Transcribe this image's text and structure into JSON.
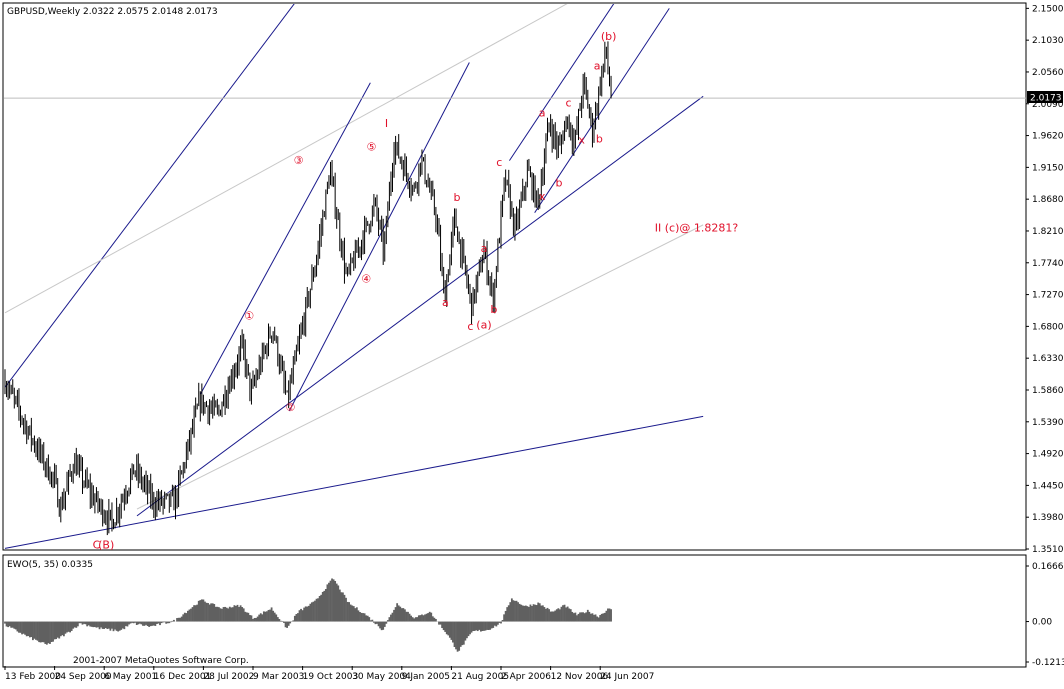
{
  "header": {
    "title": "GBPUSD,Weekly  2.0322 2.0575 2.0148 2.0173"
  },
  "indicator": {
    "title": "EWO(5, 35) 0.0335",
    "ticks": [
      "0.1666",
      "0.00",
      "-0.1213"
    ]
  },
  "copyright": "2001-2007 MetaQuotes Software Corp.",
  "current_price": "2.0173",
  "colors": {
    "background": "#ffffff",
    "bars": "#000000",
    "channels": "#1a1a8c",
    "thin_lines": "#c8c8c8",
    "labels": "#e0102a",
    "price_box": "#000000",
    "histogram": "#606060"
  },
  "chart_data": [
    {
      "type": "bar",
      "subtype": "ohlc",
      "title": "GBPUSD,Weekly  2.0322 2.0575 2.0148 2.0173",
      "last_bar": {
        "open": 2.0322,
        "high": 2.0575,
        "low": 2.0148,
        "close": 2.0173
      },
      "ylim": [
        1.351,
        2.152
      ],
      "y_ticks": [
        "2.1500",
        "2.1030",
        "2.0560",
        "2.0090",
        "1.9620",
        "1.9150",
        "1.8680",
        "1.8210",
        "1.7740",
        "1.7270",
        "1.6800",
        "1.6330",
        "1.5860",
        "1.5390",
        "1.4920",
        "1.4450",
        "1.3980",
        "1.3510"
      ],
      "x_ticks": [
        "13 Feb 2000",
        "24 Sep 2000",
        "6 May 2001",
        "16 Dec 2001",
        "28 Jul 2002",
        "9 Mar 2003",
        "19 Oct 2003",
        "30 May 2004",
        "9 Jan 2005",
        "21 Aug 2005",
        "2 Apr 2006",
        "12 Nov 2006",
        "24 Jun 2007"
      ],
      "price_path": [
        {
          "date": "2000-02-13",
          "price": 1.6
        },
        {
          "date": "2000-05-20",
          "price": 1.53
        },
        {
          "date": "2000-09-24",
          "price": 1.45
        },
        {
          "date": "2000-10-20",
          "price": 1.41
        },
        {
          "date": "2000-12-20",
          "price": 1.48
        },
        {
          "date": "2001-03-10",
          "price": 1.43
        },
        {
          "date": "2001-06-10",
          "price": 1.39
        },
        {
          "date": "2001-09-20",
          "price": 1.47
        },
        {
          "date": "2001-12-16",
          "price": 1.42
        },
        {
          "date": "2002-03-20",
          "price": 1.42
        },
        {
          "date": "2002-07-10",
          "price": 1.57
        },
        {
          "date": "2002-10-01",
          "price": 1.55
        },
        {
          "date": "2003-01-20",
          "price": 1.65
        },
        {
          "date": "2003-02-28",
          "price": 1.58
        },
        {
          "date": "2003-06-05",
          "price": 1.68
        },
        {
          "date": "2003-08-10",
          "price": 1.57
        },
        {
          "date": "2003-12-20",
          "price": 1.78
        },
        {
          "date": "2004-02-20",
          "price": 1.91
        },
        {
          "date": "2004-05-05",
          "price": 1.75
        },
        {
          "date": "2004-09-10",
          "price": 1.86
        },
        {
          "date": "2004-10-20",
          "price": 1.79
        },
        {
          "date": "2004-12-05",
          "price": 1.95
        },
        {
          "date": "2005-03-05",
          "price": 1.88
        },
        {
          "date": "2005-04-05",
          "price": 1.93
        },
        {
          "date": "2005-06-15",
          "price": 1.84
        },
        {
          "date": "2005-07-20",
          "price": 1.72
        },
        {
          "date": "2005-09-05",
          "price": 1.84
        },
        {
          "date": "2005-11-20",
          "price": 1.71
        },
        {
          "date": "2006-01-15",
          "price": 1.79
        },
        {
          "date": "2006-02-25",
          "price": 1.72
        },
        {
          "date": "2006-04-20",
          "price": 1.9
        },
        {
          "date": "2006-06-05",
          "price": 1.82
        },
        {
          "date": "2006-08-01",
          "price": 1.91
        },
        {
          "date": "2006-09-15",
          "price": 1.86
        },
        {
          "date": "2006-11-05",
          "price": 1.98
        },
        {
          "date": "2006-12-20",
          "price": 1.94
        },
        {
          "date": "2007-01-25",
          "price": 1.99
        },
        {
          "date": "2007-03-01",
          "price": 1.95
        },
        {
          "date": "2007-04-10",
          "price": 2.04
        },
        {
          "date": "2007-05-20",
          "price": 1.97
        },
        {
          "date": "2007-07-20",
          "price": 2.09
        },
        {
          "date": "2007-08-05",
          "price": 2.04
        },
        {
          "date": "2007-08-15",
          "price": 2.017
        }
      ],
      "annotations": [
        {
          "text": "(B)",
          "date": "2001-05-15",
          "price": 1.352
        },
        {
          "text": "C",
          "date": "2001-04-01",
          "price": 1.352
        },
        {
          "text": "①",
          "date": "2003-02-20",
          "price": 1.69
        },
        {
          "text": "②",
          "date": "2003-08-25",
          "price": 1.555
        },
        {
          "text": "③",
          "date": "2003-10-01",
          "price": 1.92
        },
        {
          "text": "I",
          "date": "2004-11-01",
          "price": 1.975
        },
        {
          "text": "④",
          "date": "2004-08-01",
          "price": 1.745
        },
        {
          "text": "⑤",
          "date": "2004-08-25",
          "price": 1.94
        },
        {
          "text": "a",
          "date": "2005-07-25",
          "price": 1.71
        },
        {
          "text": "b",
          "date": "2005-09-15",
          "price": 1.865
        },
        {
          "text": "c",
          "date": "2005-11-15",
          "price": 1.675
        },
        {
          "text": "(a)",
          "date": "2006-01-15",
          "price": 1.677
        },
        {
          "text": "a",
          "date": "2006-01-15",
          "price": 1.79
        },
        {
          "text": "b",
          "date": "2006-03-01",
          "price": 1.7
        },
        {
          "text": "c",
          "date": "2006-03-25",
          "price": 1.917
        },
        {
          "text": "a",
          "date": "2006-10-05",
          "price": 1.99
        },
        {
          "text": "x",
          "date": "2006-10-05",
          "price": 1.867
        },
        {
          "text": "b",
          "date": "2006-12-20",
          "price": 1.887
        },
        {
          "text": "c",
          "date": "2007-02-01",
          "price": 2.005
        },
        {
          "text": "x",
          "date": "2007-04-01",
          "price": 1.95
        },
        {
          "text": "a",
          "date": "2007-06-10",
          "price": 2.06
        },
        {
          "text": "b",
          "date": "2007-06-20",
          "price": 1.952
        },
        {
          "text": "(b)",
          "date": "2007-08-01",
          "price": 2.103
        },
        {
          "text": "II (c)@ 1.8281?",
          "date": "2008-09-01",
          "price": 1.82
        }
      ]
    },
    {
      "type": "bar",
      "subtype": "histogram",
      "title": "EWO(5, 35) 0.0335",
      "ylim": [
        -0.1213,
        0.1666
      ],
      "y_ticks": [
        "0.1666",
        "0.00",
        "-0.1213"
      ],
      "last_value": 0.0335,
      "value_path": [
        {
          "date": "2000-02-13",
          "value": -0.01
        },
        {
          "date": "2000-06-10",
          "value": -0.05
        },
        {
          "date": "2000-08-20",
          "value": -0.07
        },
        {
          "date": "2000-11-20",
          "value": -0.035
        },
        {
          "date": "2001-01-20",
          "value": -0.005
        },
        {
          "date": "2001-04-10",
          "value": -0.02
        },
        {
          "date": "2001-07-15",
          "value": -0.028
        },
        {
          "date": "2001-09-10",
          "value": -0.005
        },
        {
          "date": "2001-12-01",
          "value": -0.015
        },
        {
          "date": "2002-03-20",
          "value": 0.002
        },
        {
          "date": "2002-07-20",
          "value": 0.065
        },
        {
          "date": "2002-10-15",
          "value": 0.04
        },
        {
          "date": "2003-01-10",
          "value": 0.048
        },
        {
          "date": "2003-03-10",
          "value": 0.01
        },
        {
          "date": "2003-06-01",
          "value": 0.04
        },
        {
          "date": "2003-08-10",
          "value": -0.02
        },
        {
          "date": "2003-10-01",
          "value": 0.03
        },
        {
          "date": "2003-12-15",
          "value": 0.06
        },
        {
          "date": "2004-03-05",
          "value": 0.13
        },
        {
          "date": "2004-05-15",
          "value": 0.055
        },
        {
          "date": "2004-08-01",
          "value": 0.02
        },
        {
          "date": "2004-10-15",
          "value": -0.025
        },
        {
          "date": "2004-12-20",
          "value": 0.055
        },
        {
          "date": "2005-03-10",
          "value": 0.01
        },
        {
          "date": "2005-05-15",
          "value": 0.03
        },
        {
          "date": "2005-08-05",
          "value": -0.04
        },
        {
          "date": "2005-09-20",
          "value": -0.09
        },
        {
          "date": "2005-11-25",
          "value": -0.03
        },
        {
          "date": "2006-02-01",
          "value": -0.025
        },
        {
          "date": "2006-04-01",
          "value": -0.005
        },
        {
          "date": "2006-05-20",
          "value": 0.07
        },
        {
          "date": "2006-07-20",
          "value": 0.045
        },
        {
          "date": "2006-09-20",
          "value": 0.055
        },
        {
          "date": "2006-11-20",
          "value": 0.028
        },
        {
          "date": "2007-01-15",
          "value": 0.048
        },
        {
          "date": "2007-03-10",
          "value": 0.02
        },
        {
          "date": "2007-05-01",
          "value": 0.032
        },
        {
          "date": "2007-06-15",
          "value": 0.015
        },
        {
          "date": "2007-08-01",
          "value": 0.038
        },
        {
          "date": "2007-08-15",
          "value": 0.0335
        }
      ]
    }
  ]
}
